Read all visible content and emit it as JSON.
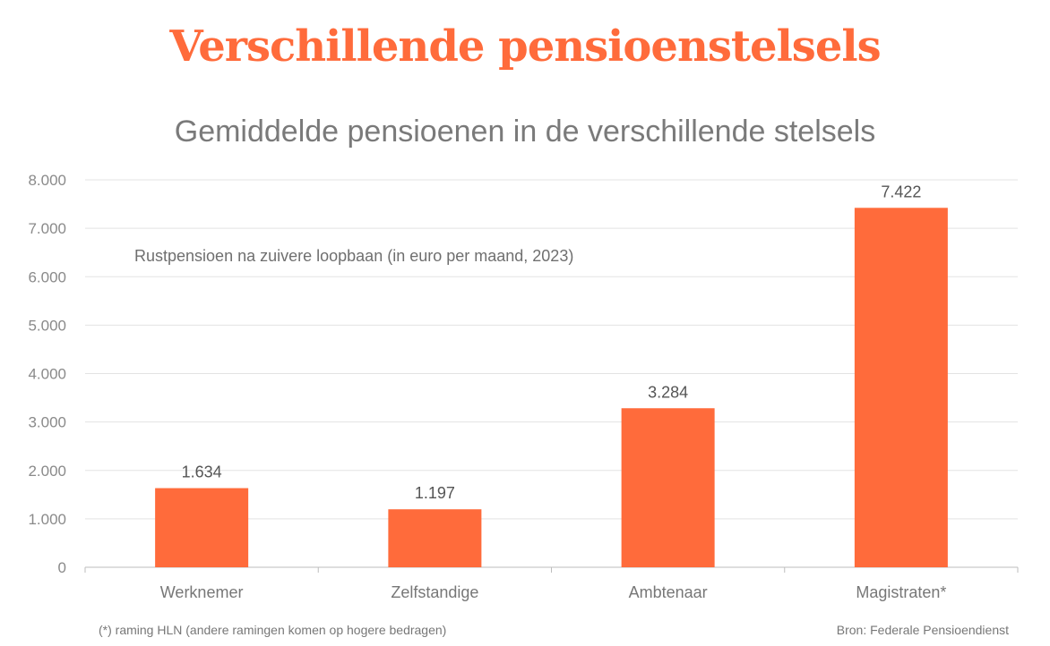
{
  "headline": "Verschillende pensioenstelsels",
  "chart_data": {
    "type": "bar",
    "title": "Gemiddelde pensioenen in de verschillende stelsels",
    "annotation": "Rustpensioen na zuivere loopbaan (in euro per maand, 2023)",
    "categories": [
      "Werknemer",
      "Zelfstandige",
      "Ambtenaar",
      "Magistraten*"
    ],
    "values": [
      1634,
      1197,
      3284,
      7422
    ],
    "value_labels": [
      "1.634",
      "1.197",
      "3.284",
      "7.422"
    ],
    "yticks": [
      0,
      1000,
      2000,
      3000,
      4000,
      5000,
      6000,
      7000,
      8000
    ],
    "ytick_labels": [
      "0",
      "1.000",
      "2.000",
      "3.000",
      "4.000",
      "5.000",
      "6.000",
      "7.000",
      "8.000"
    ],
    "ylim": [
      0,
      8000
    ],
    "grid": true,
    "bar_color": "#ff6b3b"
  },
  "footnote": "(*) raming HLN (andere ramingen komen op hogere bedragen)",
  "source": "Bron: Federale Pensioendienst"
}
